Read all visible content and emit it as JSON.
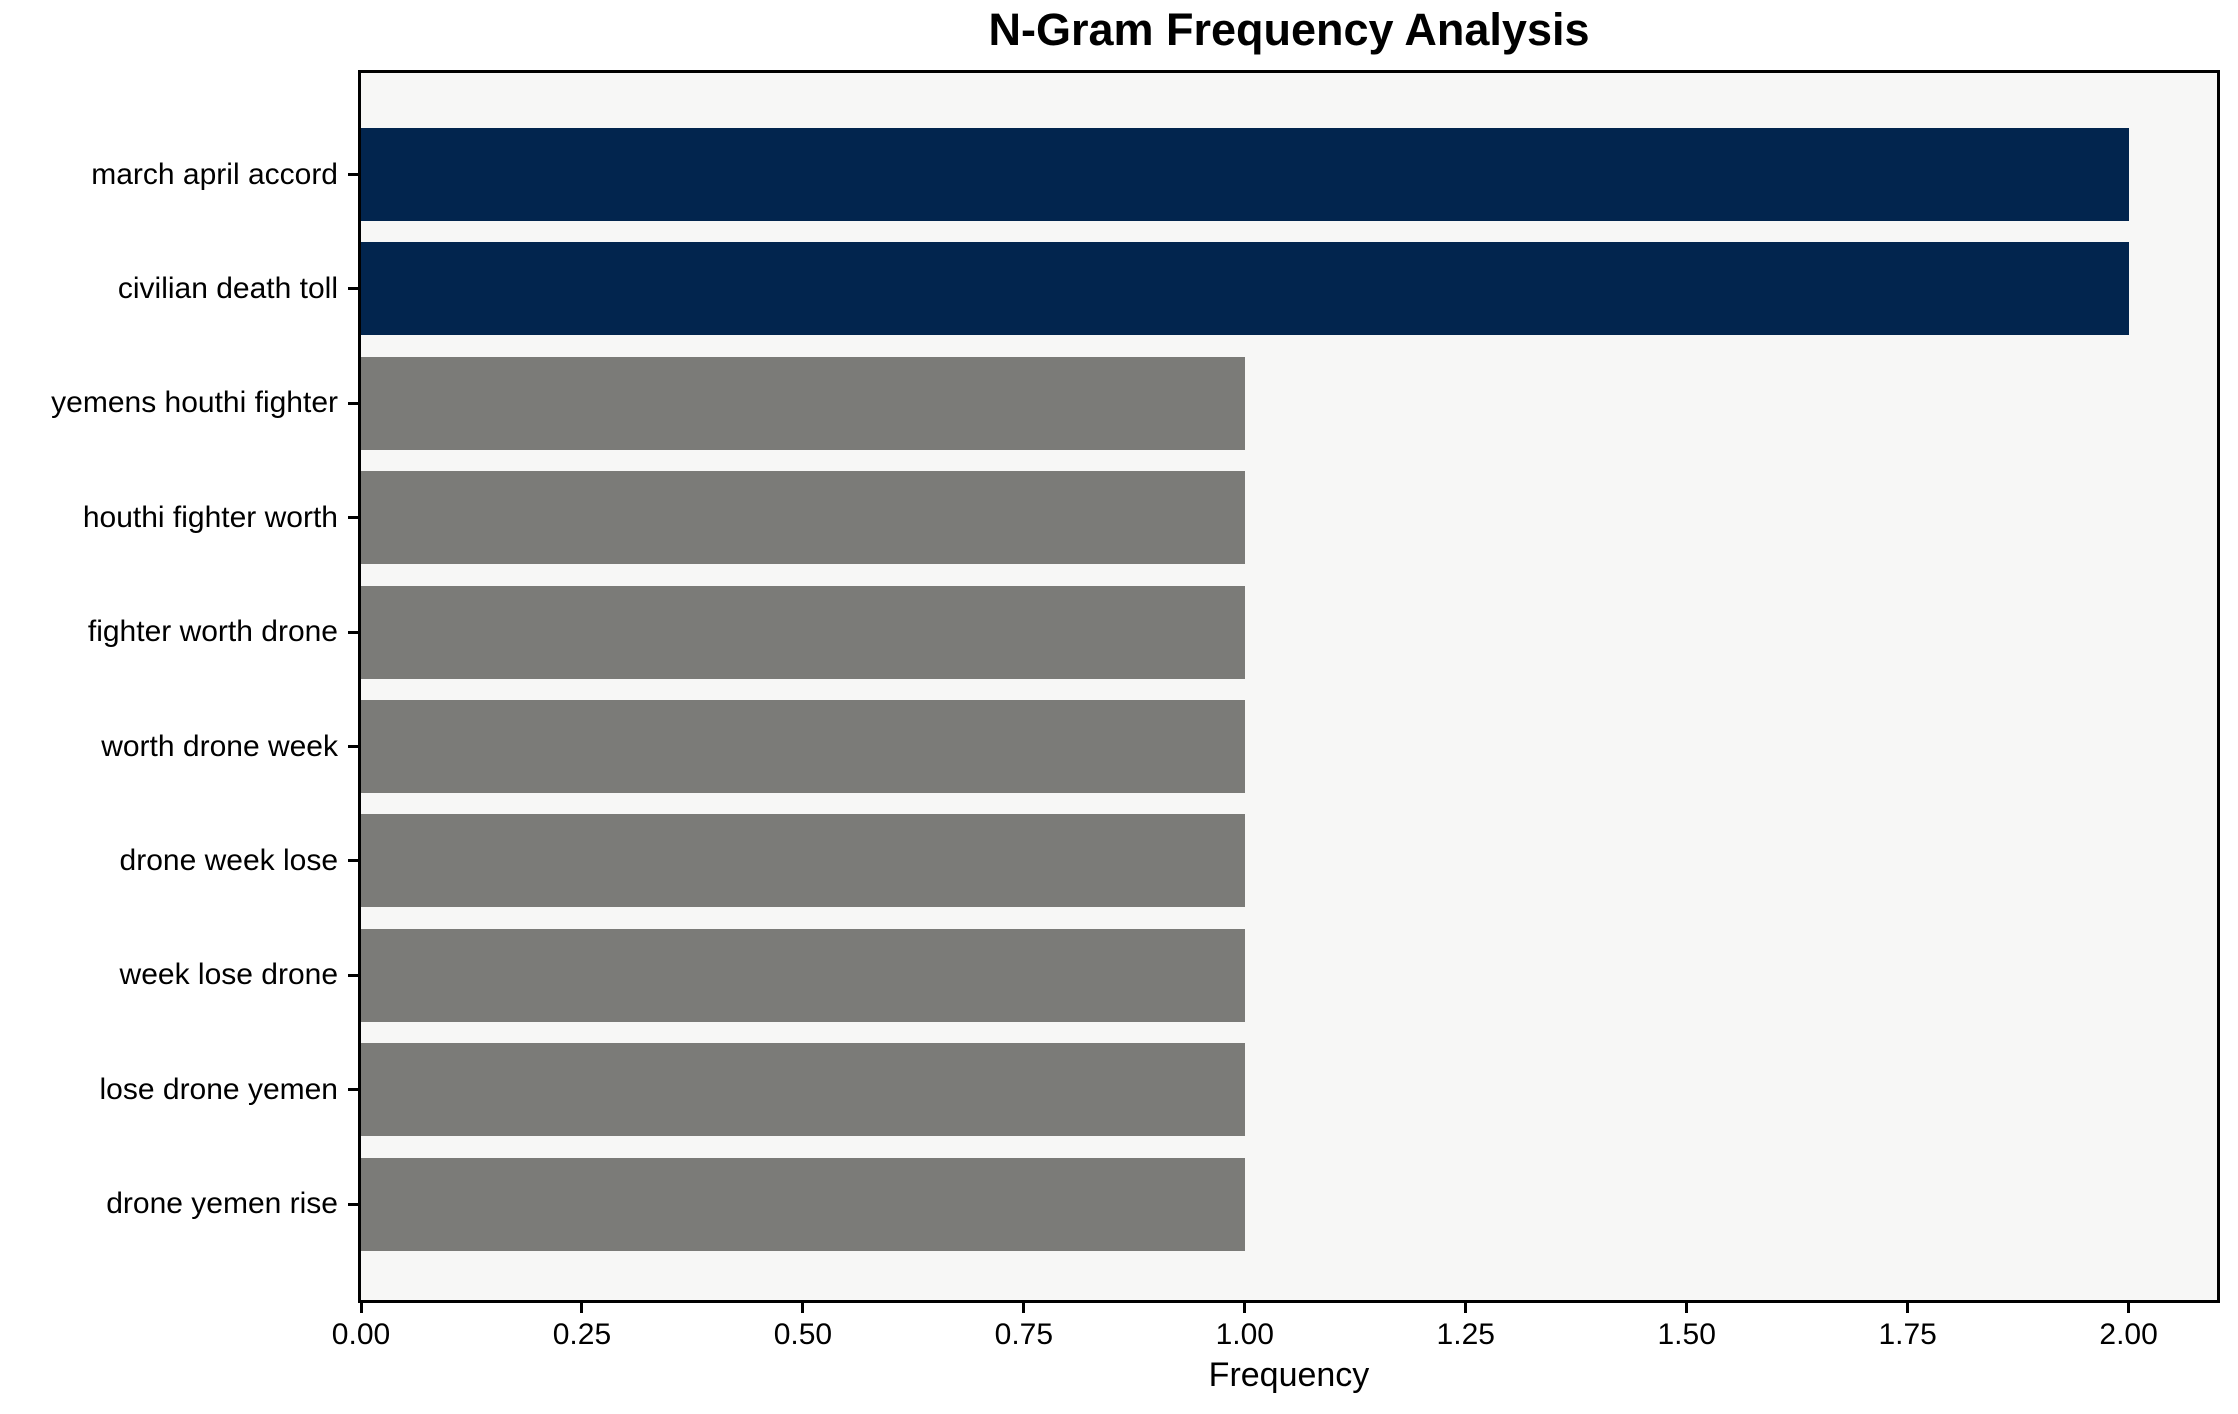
{
  "chart_data": {
    "type": "bar",
    "orientation": "horizontal",
    "title": "N-Gram Frequency Analysis",
    "xlabel": "Frequency",
    "ylabel": "",
    "categories": [
      "march april accord",
      "civilian death toll",
      "yemens houthi fighter",
      "houthi fighter worth",
      "fighter worth drone",
      "worth drone week",
      "drone week lose",
      "week lose drone",
      "lose drone yemen",
      "drone yemen rise"
    ],
    "values": [
      2,
      2,
      1,
      1,
      1,
      1,
      1,
      1,
      1,
      1
    ],
    "bar_colors": [
      "#02254e",
      "#02254e",
      "#7b7b78",
      "#7b7b78",
      "#7b7b78",
      "#7b7b78",
      "#7b7b78",
      "#7b7b78",
      "#7b7b78",
      "#7b7b78"
    ],
    "xticks": [
      "0.00",
      "0.25",
      "0.50",
      "0.75",
      "1.00",
      "1.25",
      "1.50",
      "1.75",
      "2.00"
    ],
    "xtick_values": [
      0,
      0.25,
      0.5,
      0.75,
      1.0,
      1.25,
      1.5,
      1.75,
      2.0
    ],
    "xlim": [
      0,
      2.1
    ],
    "grid": false,
    "legend": null,
    "colors": {
      "highlight": "#02254e",
      "default": "#7b7b78",
      "plot_background": "#f7f7f6",
      "page_background": "#ffffff",
      "spine": "#000000"
    }
  }
}
